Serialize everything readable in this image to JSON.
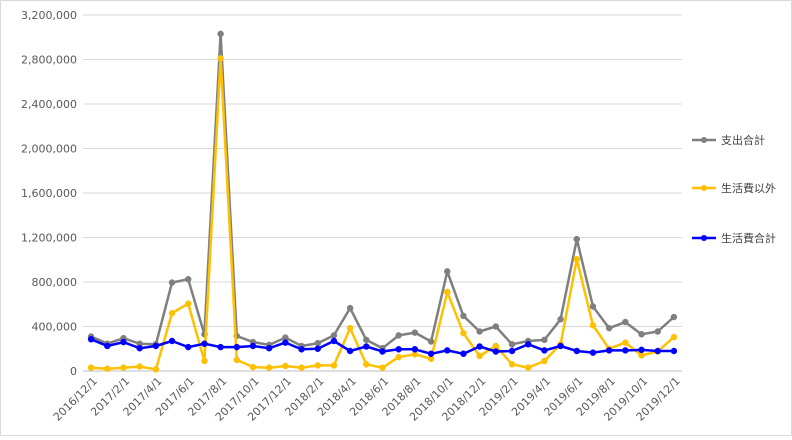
{
  "chart_data": {
    "type": "line",
    "title": "",
    "xlabel": "",
    "ylabel": "",
    "ylim": [
      0,
      3200000
    ],
    "y_ticks": [
      0,
      400000,
      800000,
      1200000,
      1600000,
      2000000,
      2400000,
      2800000,
      3200000
    ],
    "y_tick_labels": [
      "0",
      "400,000",
      "800,000",
      "1,200,000",
      "1,600,000",
      "2,000,000",
      "2,400,000",
      "2,800,000",
      "3,200,000"
    ],
    "grid": true,
    "legend_position": "right",
    "x": [
      "2016/12/1",
      "2017/1/1",
      "2017/2/1",
      "2017/3/1",
      "2017/4/1",
      "2017/5/1",
      "2017/6/1",
      "2017/7/1",
      "2017/8/1",
      "2017/9/1",
      "2017/10/1",
      "2017/11/1",
      "2017/12/1",
      "2018/1/1",
      "2018/2/1",
      "2018/3/1",
      "2018/4/1",
      "2018/5/1",
      "2018/6/1",
      "2018/7/1",
      "2018/8/1",
      "2018/9/1",
      "2018/10/1",
      "2018/11/1",
      "2018/12/1",
      "2019/1/1",
      "2019/2/1",
      "2019/3/1",
      "2019/4/1",
      "2019/5/1",
      "2019/6/1",
      "2019/7/1",
      "2019/8/1",
      "2019/9/1",
      "2019/10/1",
      "2019/11/1",
      "2019/12/1"
    ],
    "x_tick_labels": [
      "2016/12/1",
      "2017/2/1",
      "2017/4/1",
      "2017/6/1",
      "2017/8/1",
      "2017/10/1",
      "2017/12/1",
      "2018/2/1",
      "2018/4/1",
      "2018/6/1",
      "2018/8/1",
      "2018/10/1",
      "2018/12/1",
      "2019/2/1",
      "2019/4/1",
      "2019/6/1",
      "2019/8/1",
      "2019/10/1",
      "2019/12/1"
    ],
    "series": [
      {
        "name": "支出合計",
        "color": "#7f7f7f",
        "values": [
          310000,
          245000,
          295000,
          245000,
          240000,
          795000,
          825000,
          330000,
          3030000,
          315000,
          260000,
          235000,
          300000,
          225000,
          250000,
          320000,
          565000,
          280000,
          205000,
          320000,
          345000,
          265000,
          895000,
          495000,
          355000,
          400000,
          240000,
          270000,
          280000,
          465000,
          1185000,
          580000,
          385000,
          440000,
          330000,
          355000,
          485000
        ]
      },
      {
        "name": "生活費以外",
        "color": "#ffc000",
        "values": [
          30000,
          20000,
          30000,
          40000,
          15000,
          520000,
          605000,
          90000,
          2810000,
          100000,
          35000,
          30000,
          45000,
          30000,
          50000,
          50000,
          385000,
          60000,
          30000,
          125000,
          150000,
          110000,
          710000,
          340000,
          135000,
          225000,
          60000,
          30000,
          90000,
          240000,
          1005000,
          410000,
          200000,
          255000,
          140000,
          175000,
          305000
        ]
      },
      {
        "name": "生活費合計",
        "color": "#0000ff",
        "values": [
          285000,
          225000,
          260000,
          205000,
          225000,
          270000,
          215000,
          245000,
          215000,
          215000,
          225000,
          205000,
          255000,
          195000,
          200000,
          270000,
          180000,
          220000,
          175000,
          195000,
          195000,
          155000,
          185000,
          155000,
          220000,
          175000,
          180000,
          240000,
          185000,
          225000,
          180000,
          165000,
          185000,
          185000,
          190000,
          180000,
          180000
        ]
      }
    ]
  }
}
